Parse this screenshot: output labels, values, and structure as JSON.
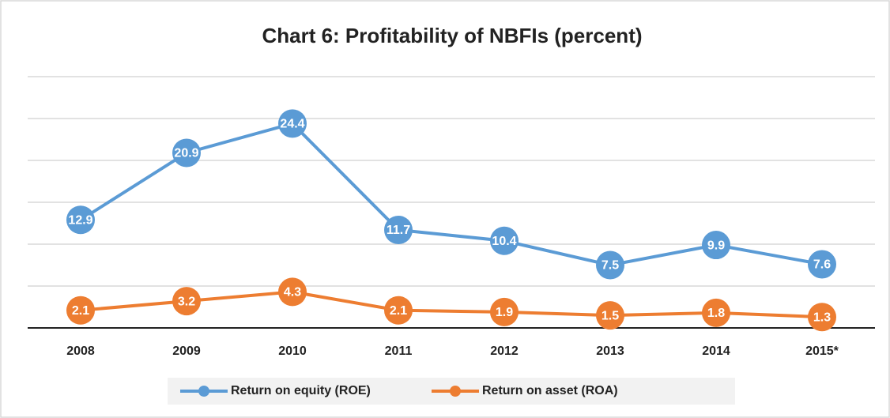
{
  "chart_data": {
    "type": "line",
    "title": "Chart 6: Profitability of NBFIs (percent)",
    "categories": [
      "2008",
      "2009",
      "2010",
      "2011",
      "2012",
      "2013",
      "2014",
      "2015*"
    ],
    "series": [
      {
        "name": "Return on equity (ROE)",
        "color": "#5b9bd5",
        "values": [
          12.9,
          20.9,
          24.4,
          11.7,
          10.4,
          7.5,
          9.9,
          7.6
        ]
      },
      {
        "name": "Return on asset (ROA)",
        "color": "#ed7d31",
        "values": [
          2.1,
          3.2,
          4.3,
          2.1,
          1.9,
          1.5,
          1.8,
          1.3
        ]
      }
    ],
    "ylim": [
      0,
      30
    ],
    "yticks": [
      0,
      5,
      10,
      15,
      20,
      25,
      30
    ],
    "grid": true,
    "legend": "bottom"
  }
}
